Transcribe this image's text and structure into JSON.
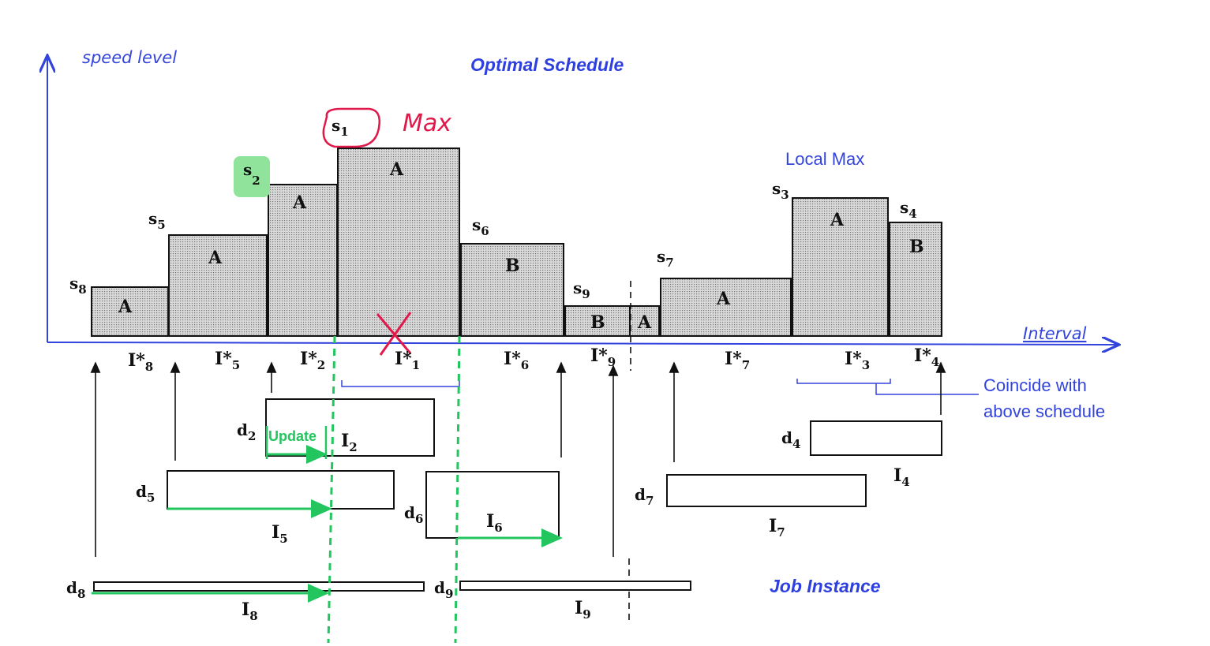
{
  "axes": {
    "y_label": "speed level",
    "x_label": "Interval"
  },
  "titles": {
    "optimal_schedule": "Optimal Schedule",
    "job_instance": "Job Instance"
  },
  "annotations": {
    "max": "Max",
    "local_max": "Local Max",
    "coincide_line1": "Coincide with",
    "coincide_line2": "above schedule",
    "update": "Update"
  },
  "bars": [
    {
      "speed": "s",
      "speed_sub": "8",
      "letter": "A",
      "interval": "I*",
      "interval_sub": "8"
    },
    {
      "speed": "s",
      "speed_sub": "5",
      "letter": "A",
      "interval": "I*",
      "interval_sub": "5"
    },
    {
      "speed": "s",
      "speed_sub": "2",
      "letter": "A",
      "interval": "I*",
      "interval_sub": "2"
    },
    {
      "speed": "s",
      "speed_sub": "1",
      "letter": "A",
      "interval": "I*",
      "interval_sub": "1"
    },
    {
      "speed": "s",
      "speed_sub": "6",
      "letter": "B",
      "interval": "I*",
      "interval_sub": "6"
    },
    {
      "speed": "s",
      "speed_sub": "9",
      "letter": "B",
      "interval": "I*",
      "interval_sub": "9"
    },
    {
      "speed": "",
      "speed_sub": "",
      "letter": "A",
      "interval": "",
      "interval_sub": ""
    },
    {
      "speed": "s",
      "speed_sub": "7",
      "letter": "A",
      "interval": "I*",
      "interval_sub": "7"
    },
    {
      "speed": "s",
      "speed_sub": "3",
      "letter": "A",
      "interval": "I*",
      "interval_sub": "3"
    },
    {
      "speed": "s",
      "speed_sub": "4",
      "letter": "B",
      "interval": "I*",
      "interval_sub": "4"
    }
  ],
  "jobs": [
    {
      "deadline": "d",
      "deadline_sub": "2",
      "interval": "I",
      "interval_sub": "2"
    },
    {
      "deadline": "d",
      "deadline_sub": "5",
      "interval": "I",
      "interval_sub": "5"
    },
    {
      "deadline": "d",
      "deadline_sub": "6",
      "interval": "I",
      "interval_sub": "6"
    },
    {
      "deadline": "d",
      "deadline_sub": "7",
      "interval": "I",
      "interval_sub": "7"
    },
    {
      "deadline": "d",
      "deadline_sub": "4",
      "interval": "I",
      "interval_sub": "4"
    },
    {
      "deadline": "d",
      "deadline_sub": "8",
      "interval": "I",
      "interval_sub": "8"
    },
    {
      "deadline": "d",
      "deadline_sub": "9",
      "interval": "I",
      "interval_sub": "9"
    }
  ],
  "colors": {
    "axis": "#3344dd",
    "highlight_red": "#e0194a",
    "highlight_green": "#22c55e",
    "green_badge": "#8fe39a"
  }
}
